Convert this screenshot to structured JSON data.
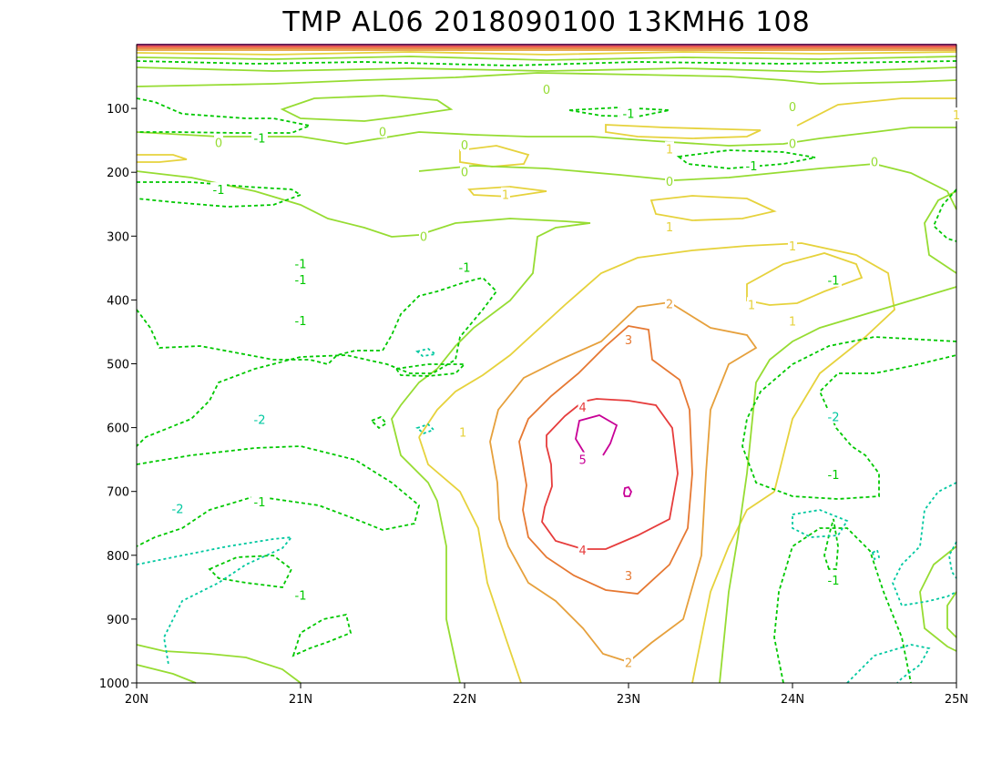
{
  "chart_data": {
    "type": "contour",
    "title": "TMP AL06 2018090100 13KMH6 108",
    "x_axis": {
      "ticks": [
        "20N",
        "21N",
        "22N",
        "23N",
        "24N",
        "25N"
      ],
      "range": [
        20,
        25
      ]
    },
    "y_axis": {
      "ticks": [
        "100",
        "200",
        "300",
        "400",
        "500",
        "600",
        "700",
        "800",
        "900",
        "1000"
      ],
      "range": [
        0,
        1000
      ],
      "inverted": true
    },
    "contour_levels": [
      {
        "level": -2,
        "color": "#00c8a0",
        "style": "dashed"
      },
      {
        "level": -1,
        "color": "#00c800",
        "style": "dashed"
      },
      {
        "level": 0,
        "color": "#96dc32",
        "style": "solid"
      },
      {
        "level": 1,
        "color": "#e6d23c",
        "style": "solid"
      },
      {
        "level": 2,
        "color": "#e6a03c",
        "style": "solid"
      },
      {
        "level": 3,
        "color": "#e67832",
        "style": "solid"
      },
      {
        "level": 4,
        "color": "#e63c3c",
        "style": "solid"
      },
      {
        "level": 5,
        "color": "#c80096",
        "style": "solid"
      }
    ],
    "labels": [
      {
        "text": "5",
        "level": 5,
        "x": 22.72,
        "p": 650
      },
      {
        "text": "4",
        "level": 4,
        "x": 22.72,
        "p": 568
      },
      {
        "text": "4",
        "level": 4,
        "x": 22.72,
        "p": 792
      },
      {
        "text": "3",
        "level": 3,
        "x": 23.0,
        "p": 462
      },
      {
        "text": "3",
        "level": 3,
        "x": 23.0,
        "p": 832
      },
      {
        "text": "2",
        "level": 2,
        "x": 23.25,
        "p": 406
      },
      {
        "text": "2",
        "level": 2,
        "x": 23.0,
        "p": 968
      },
      {
        "text": "1",
        "level": 1,
        "x": 21.99,
        "p": 607
      },
      {
        "text": "1",
        "level": 1,
        "x": 23.25,
        "p": 285
      },
      {
        "text": "1",
        "level": 1,
        "x": 23.25,
        "p": 163
      },
      {
        "text": "1",
        "level": 1,
        "x": 24.0,
        "p": 315
      },
      {
        "text": "1",
        "level": 1,
        "x": 23.75,
        "p": 407
      },
      {
        "text": "1",
        "level": 1,
        "x": 24.0,
        "p": 433
      },
      {
        "text": "1",
        "level": 1,
        "x": 22.25,
        "p": 235
      },
      {
        "text": "1",
        "level": 1,
        "x": 25.0,
        "p": 110
      },
      {
        "text": "0",
        "level": 0,
        "x": 21.75,
        "p": 300
      },
      {
        "text": "0",
        "level": 0,
        "x": 21.5,
        "p": 136
      },
      {
        "text": "0",
        "level": 0,
        "x": 22.0,
        "p": 157
      },
      {
        "text": "0",
        "level": 0,
        "x": 22.0,
        "p": 199
      },
      {
        "text": "0",
        "level": 0,
        "x": 20.5,
        "p": 153
      },
      {
        "text": "0",
        "level": 0,
        "x": 24.0,
        "p": 155
      },
      {
        "text": "0",
        "level": 0,
        "x": 24.5,
        "p": 183
      },
      {
        "text": "0",
        "level": 0,
        "x": 23.25,
        "p": 214
      },
      {
        "text": "0",
        "level": 0,
        "x": 24.0,
        "p": 97
      },
      {
        "text": "0",
        "level": 0,
        "x": 22.5,
        "p": 70
      },
      {
        "text": "-1",
        "level": -1,
        "x": 20.5,
        "p": 227
      },
      {
        "text": "-1",
        "level": -1,
        "x": 20.75,
        "p": 146
      },
      {
        "text": "-1",
        "level": -1,
        "x": 21.0,
        "p": 343
      },
      {
        "text": "-1",
        "level": -1,
        "x": 21.0,
        "p": 368
      },
      {
        "text": "-1",
        "level": -1,
        "x": 21.0,
        "p": 432
      },
      {
        "text": "-1",
        "level": -1,
        "x": 21.0,
        "p": 862
      },
      {
        "text": "-1",
        "level": -1,
        "x": 20.75,
        "p": 716
      },
      {
        "text": "-1",
        "level": -1,
        "x": 22.0,
        "p": 349
      },
      {
        "text": "-1",
        "level": -1,
        "x": 24.25,
        "p": 369
      },
      {
        "text": "-1",
        "level": -1,
        "x": 24.25,
        "p": 673
      },
      {
        "text": "-1",
        "level": -1,
        "x": 24.25,
        "p": 839
      },
      {
        "text": "-1",
        "level": -1,
        "x": 23.75,
        "p": 190
      },
      {
        "text": "-1",
        "level": -1,
        "x": 23.0,
        "p": 108
      },
      {
        "text": "-2",
        "level": -2,
        "x": 20.75,
        "p": 587
      },
      {
        "text": "-2",
        "level": -2,
        "x": 20.25,
        "p": 727
      },
      {
        "text": "-2",
        "level": -2,
        "x": 24.25,
        "p": 583
      }
    ]
  }
}
